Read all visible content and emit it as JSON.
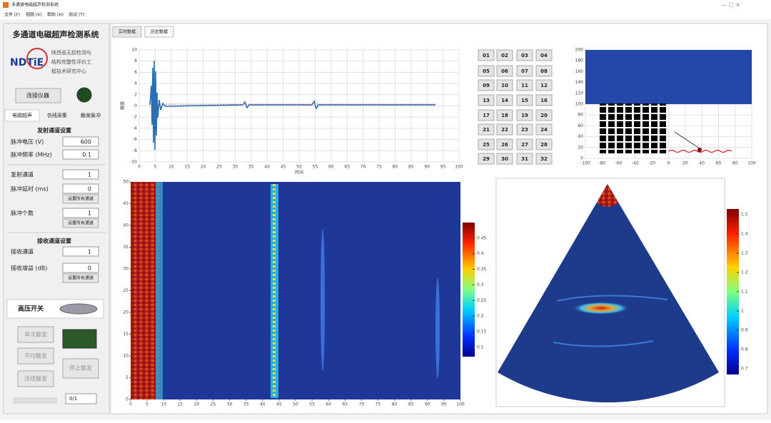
{
  "window": {
    "title": "多通道电磁超声检测系统",
    "menu": [
      "文件 (F)",
      "视图 (V)",
      "帮助 (H)",
      "测试 (T)"
    ]
  },
  "sidebar": {
    "title": "多通道电磁超声检测系统",
    "logo": "NDTiE",
    "org": [
      "陕西省无损检测与",
      "结构完整性评价工",
      "程技术研究中心"
    ],
    "connect": "连接仪器",
    "tabs": [
      "电磁超声",
      "仿线采集",
      "触发脉冲"
    ],
    "transmit": {
      "heading": "发射通道设置",
      "voltage_label": "脉冲电压 (V)",
      "voltage": 600,
      "freq_label": "脉冲频率 (MHz)",
      "freq": 0.1,
      "channel_label": "发射通道",
      "channel": 1,
      "delay_label": "脉冲延时 (ms)",
      "delay": 0,
      "count_label": "脉冲个数",
      "count": 1,
      "set_all": "设置所有通道"
    },
    "receive": {
      "heading": "接收通道设置",
      "channel_label": "接收通道",
      "channel": 1,
      "gain_label": "接收增益 (dB)",
      "gain": 0,
      "set_all": "设置所有通道"
    },
    "hv_switch": "高压开关",
    "buttons": [
      "单次触发",
      "平均触发",
      "连续触发",
      "停止触发"
    ],
    "status": "0/1"
  },
  "tabs": [
    "实时数据",
    "历史数据"
  ],
  "channels": [
    "01",
    "02",
    "03",
    "04",
    "05",
    "06",
    "07",
    "08",
    "09",
    "10",
    "11",
    "12",
    "13",
    "14",
    "15",
    "16",
    "17",
    "18",
    "19",
    "20",
    "21",
    "22",
    "23",
    "24",
    "25",
    "26",
    "27",
    "28",
    "29",
    "30",
    "31",
    "32"
  ],
  "waveform": {
    "xlabel": "时间",
    "ylabel": "幅值",
    "xlim": [
      0,
      100
    ],
    "ylim": [
      -10,
      10
    ],
    "xticks": [
      0,
      5,
      10,
      15,
      20,
      25,
      30,
      35,
      40,
      45,
      50,
      55,
      60,
      65,
      70,
      75,
      80,
      85,
      90,
      95,
      100
    ],
    "yticks": [
      -10,
      -8,
      -6,
      -4,
      -2,
      0,
      2,
      4,
      6,
      8,
      10
    ],
    "grid": true
  },
  "array_layout": {
    "xlim": [
      -100,
      100
    ],
    "ylim": [
      0,
      200
    ],
    "xticks": [
      -100,
      -80,
      -60,
      -40,
      -20,
      0,
      20,
      40,
      60,
      80,
      100
    ],
    "yticks": [
      0,
      20,
      40,
      60,
      80,
      100,
      120,
      140,
      160,
      180,
      200
    ],
    "grid": true
  },
  "bscan": {
    "xlim": [
      0,
      100
    ],
    "ylim": [
      0,
      50
    ],
    "xticks": [
      0,
      5,
      10,
      15,
      20,
      25,
      30,
      35,
      40,
      45,
      50,
      55,
      60,
      65,
      70,
      75,
      80,
      85,
      90,
      95,
      100
    ],
    "yticks": [
      0,
      5,
      10,
      15,
      20,
      25,
      30,
      35,
      40,
      45,
      50
    ],
    "grid": false,
    "clim": [
      0.07,
      0.5
    ],
    "cticks": [
      0.1,
      0.15,
      0.2,
      0.25,
      0.3,
      0.35,
      0.4,
      0.45
    ]
  },
  "sector": {
    "clim": [
      0.67,
      1.53
    ],
    "cticks": [
      0.7,
      0.8,
      0.9,
      1,
      1.1,
      1.2,
      1.3,
      1.4,
      1.5
    ]
  }
}
